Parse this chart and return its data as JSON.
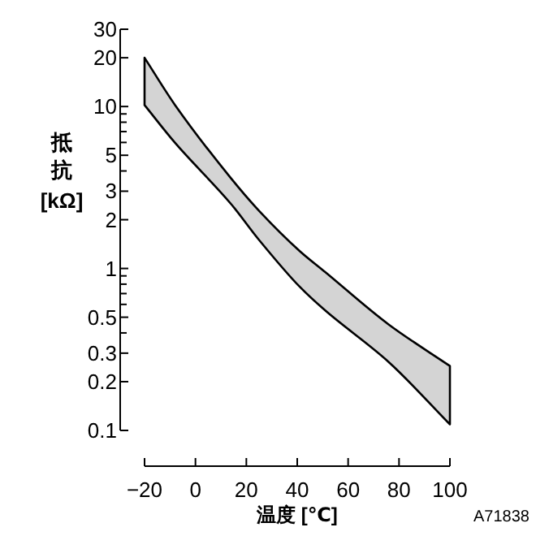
{
  "chart_data": {
    "type": "area",
    "xlabel": "温度 [℃]",
    "ylabel": "抵抗 [kΩ]",
    "annotations": [
      "A71838"
    ],
    "log": "y",
    "x": [
      -20,
      -8,
      14,
      25,
      41,
      51,
      76,
      100
    ],
    "series": [
      {
        "color": "#d4d4d4",
        "values": [
          null,
          null,
          null,
          null,
          null,
          null,
          null,
          null
        ],
        "upper": [
          20,
          10.2,
          3.6,
          2.27,
          1.28,
          0.95,
          0.45,
          0.25
        ],
        "lower": [
          10.2,
          5.96,
          2.5,
          1.5,
          0.77,
          0.55,
          0.264,
          0.109
        ]
      }
    ],
    "xlim": [
      -20,
      100
    ],
    "xticks": [
      {
        "value": -20,
        "label": "−20"
      },
      0,
      20,
      40,
      60,
      80,
      100
    ],
    "ylim": [
      0.1,
      30
    ],
    "yticks": [
      0.1,
      0.2,
      0.3,
      {
        "value": 0.4,
        "label": null
      },
      0.5,
      {
        "value": 0.6,
        "label": null
      },
      {
        "value": 0.7,
        "label": null
      },
      {
        "value": 0.8,
        "label": null
      },
      {
        "value": 0.9,
        "label": null
      },
      1,
      2,
      3,
      {
        "value": 4,
        "label": null
      },
      5,
      {
        "value": 6,
        "label": null
      },
      {
        "value": 7,
        "label": null
      },
      {
        "value": 8,
        "label": null
      },
      {
        "value": 9,
        "label": null
      },
      10,
      20,
      30
    ]
  }
}
